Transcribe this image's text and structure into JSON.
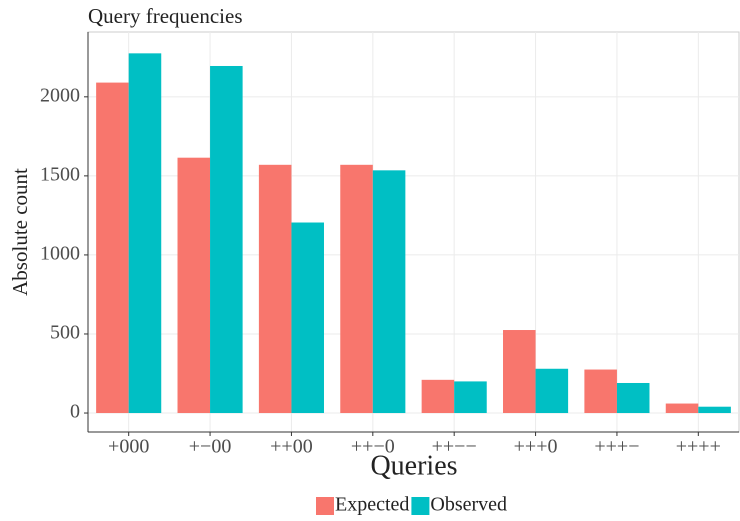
{
  "chart_data": {
    "type": "bar",
    "title": "Query frequencies",
    "x_label": "Queries",
    "y_label": "Absolute count",
    "categories": [
      "+000",
      "+−00",
      "++00",
      "++−0",
      "++−−",
      "+++0",
      "+++−",
      "++++"
    ],
    "series": [
      {
        "name": "Expected",
        "color": "#F8766D",
        "values": [
          2090,
          1615,
          1570,
          1570,
          210,
          525,
          275,
          60
        ]
      },
      {
        "name": "Observed",
        "color": "#00BFC4",
        "values": [
          2275,
          2195,
          1205,
          1535,
          200,
          280,
          190,
          40
        ]
      }
    ],
    "ylim": [
      -120,
      2410
    ],
    "yticks": [
      0,
      500,
      1000,
      1500,
      2000
    ],
    "grid": true,
    "legend": "bottom"
  }
}
